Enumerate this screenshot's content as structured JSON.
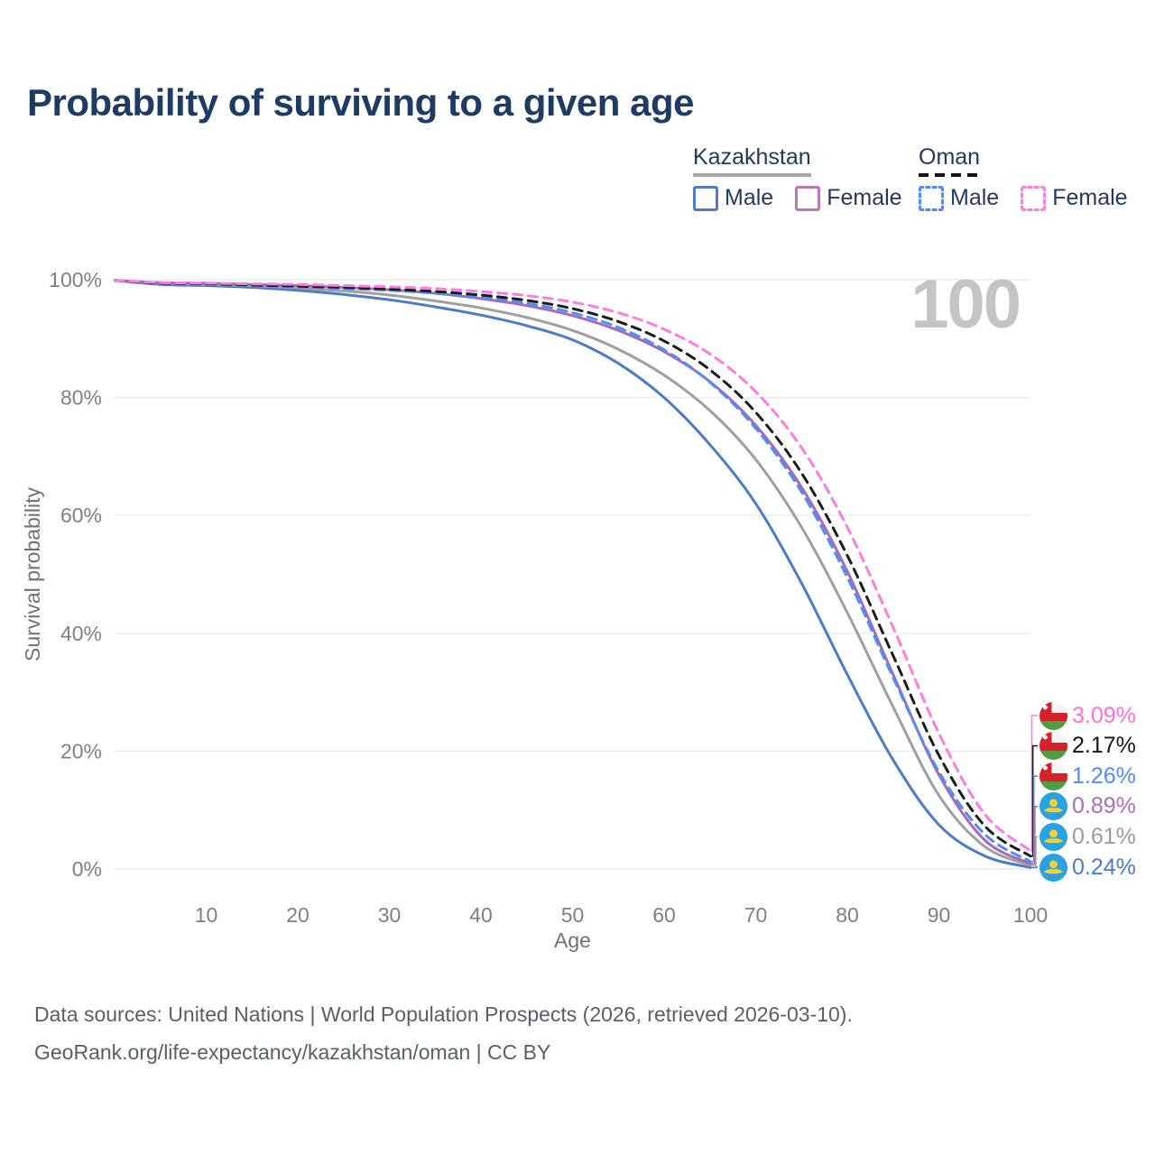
{
  "page": {
    "title": "Probability of surviving to a given age",
    "watermark": "100",
    "footer_line1": "Data sources: United Nations | World Population Prospects (2026, retrieved 2026-03-10).",
    "footer_line2": "GeoRank.org/life-expectancy/kazakhstan/oman | CC BY"
  },
  "legend": {
    "groups": [
      {
        "title": "Kazakhstan",
        "line_style": "solid",
        "underline_color": "#a7a7a7",
        "items": [
          {
            "label": "Male",
            "color": "#4b7cc4",
            "dashed": false
          },
          {
            "label": "Female",
            "color": "#b77ab8",
            "dashed": false
          }
        ]
      },
      {
        "title": "Oman",
        "line_style": "dashed",
        "underline_color": "#141414",
        "items": [
          {
            "label": "Male",
            "color": "#4f8df7",
            "dashed": true
          },
          {
            "label": "Female",
            "color": "#fc7de2",
            "dashed": true
          }
        ]
      }
    ]
  },
  "chart_data": {
    "type": "line",
    "title": "Probability of surviving to a given age",
    "xlabel": "Age",
    "ylabel": "Survival probability",
    "xlim": [
      0,
      100
    ],
    "ylim": [
      0,
      100
    ],
    "grid": "horizontal-only",
    "x_ticks": [
      10,
      20,
      30,
      40,
      50,
      60,
      70,
      80,
      90,
      100
    ],
    "y_ticks": [
      {
        "value": 0,
        "label": "0%"
      },
      {
        "value": 20,
        "label": "20%"
      },
      {
        "value": 40,
        "label": "40%"
      },
      {
        "value": 60,
        "label": "60%"
      },
      {
        "value": 80,
        "label": "80%"
      },
      {
        "value": 100,
        "label": "100%"
      }
    ],
    "x": [
      0,
      5,
      10,
      15,
      20,
      25,
      30,
      35,
      40,
      45,
      50,
      55,
      60,
      65,
      70,
      75,
      80,
      85,
      90,
      95,
      100
    ],
    "series": [
      {
        "name": "Oman Female",
        "country": "Oman",
        "sex": "Female",
        "flag": "oman",
        "color": "#fc7de2",
        "label_color": "#ff70d8",
        "dashed": true,
        "end_label": "3.09%",
        "values": [
          99.9,
          99.5,
          99.4,
          99.3,
          99.2,
          99.0,
          98.8,
          98.5,
          98.0,
          97.3,
          96.2,
          94.4,
          91.6,
          87.4,
          81.0,
          71.5,
          58.0,
          41.0,
          23.0,
          9.3,
          3.09
        ]
      },
      {
        "name": "Oman Total",
        "country": "Oman",
        "sex": "Both",
        "flag": "oman",
        "color": "#1c1c1c",
        "label_color": "#141414",
        "dashed": true,
        "end_label": "2.17%",
        "values": [
          99.9,
          99.4,
          99.3,
          99.1,
          98.9,
          98.7,
          98.4,
          98.0,
          97.4,
          96.5,
          95.1,
          92.9,
          89.6,
          84.7,
          77.5,
          67.2,
          53.2,
          36.2,
          19.3,
          7.3,
          2.17
        ]
      },
      {
        "name": "Oman Male",
        "country": "Oman",
        "sex": "Male",
        "flag": "oman",
        "color": "#4f8df7",
        "label_color": "#4f8df7",
        "dashed": true,
        "end_label": "1.26%",
        "values": [
          99.9,
          99.3,
          99.2,
          99.0,
          98.8,
          98.5,
          98.2,
          97.7,
          97.0,
          96.0,
          94.4,
          91.9,
          88.1,
          82.6,
          74.8,
          64.0,
          49.5,
          32.5,
          16.5,
          5.9,
          1.26
        ]
      },
      {
        "name": "Kazakhstan Female",
        "country": "Kazakhstan",
        "sex": "Female",
        "flag": "kazakhstan",
        "color": "#a76ab4",
        "label_color": "#ab6cb8",
        "dashed": false,
        "end_label": "0.89%",
        "values": [
          99.9,
          99.5,
          99.4,
          99.2,
          99.0,
          98.7,
          98.3,
          97.7,
          96.8,
          95.6,
          93.9,
          91.4,
          87.8,
          82.7,
          75.3,
          64.8,
          50.5,
          33.0,
          16.0,
          4.9,
          0.89
        ]
      },
      {
        "name": "Kazakhstan Total",
        "country": "Kazakhstan",
        "sex": "Both",
        "flag": "kazakhstan",
        "color": "#9f9fa1",
        "label_color": "#9b9b9b",
        "dashed": false,
        "end_label": "0.61%",
        "values": [
          99.9,
          99.4,
          99.2,
          99.0,
          98.6,
          98.1,
          97.4,
          96.4,
          95.2,
          93.6,
          91.4,
          88.2,
          83.8,
          77.8,
          69.5,
          58.0,
          43.5,
          27.5,
          12.5,
          3.8,
          0.61
        ]
      },
      {
        "name": "Kazakhstan Male",
        "country": "Kazakhstan",
        "sex": "Male",
        "flag": "kazakhstan",
        "color": "#4b7cc4",
        "label_color": "#4b7cc4",
        "dashed": false,
        "end_label": "0.24%",
        "values": [
          99.9,
          99.2,
          99.0,
          98.7,
          98.2,
          97.5,
          96.6,
          95.4,
          94.0,
          92.2,
          89.8,
          85.8,
          80.0,
          72.0,
          62.0,
          48.5,
          33.0,
          18.5,
          7.5,
          2.2,
          0.24
        ]
      }
    ]
  }
}
